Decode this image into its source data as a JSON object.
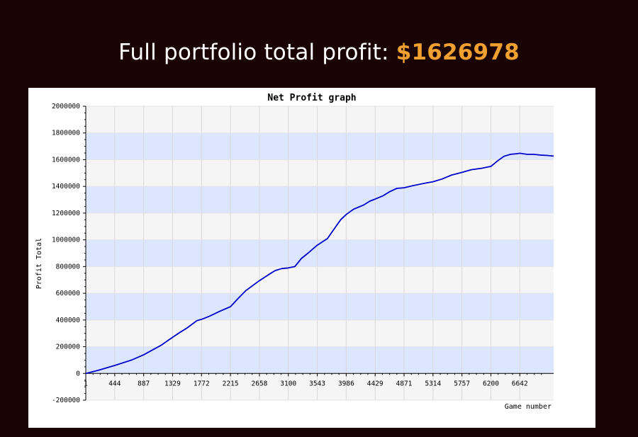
{
  "header": {
    "title_prefix": "Full portfolio total profit:",
    "total_profit": "$1626978"
  },
  "colors": {
    "page_background": "#1a0303",
    "highlight": "#f0a030",
    "line": "#0000cc",
    "band_light": "#f5f5f5",
    "band_blue": "#dde6ff"
  },
  "chart_data": {
    "type": "line",
    "title": "Net Profit graph",
    "xlabel": "Game number",
    "ylabel": "Profit Total",
    "xlim": [
      1,
      7160
    ],
    "ylim": [
      -200000,
      2000000
    ],
    "x_ticks": [
      1,
      444,
      887,
      1329,
      1772,
      2215,
      2658,
      3100,
      3543,
      3986,
      4429,
      4871,
      5314,
      5757,
      6200,
      6642
    ],
    "y_ticks": [
      -200000,
      0,
      200000,
      400000,
      600000,
      800000,
      1000000,
      1200000,
      1400000,
      1600000,
      1800000,
      2000000
    ],
    "grid": true,
    "series": [
      {
        "x": [
          1,
          200,
          444,
          700,
          887,
          1000,
          1150,
          1329,
          1450,
          1550,
          1700,
          1772,
          1900,
          2050,
          2215,
          2330,
          2450,
          2658,
          2800,
          2900,
          3000,
          3100,
          3200,
          3300,
          3400,
          3543,
          3700,
          3800,
          3900,
          3986,
          4100,
          4250,
          4350,
          4429,
          4550,
          4650,
          4760,
          4871,
          5000,
          5100,
          5200,
          5314,
          5450,
          5600,
          5757,
          5900,
          6050,
          6200,
          6300,
          6400,
          6500,
          6600,
          6642,
          6750,
          6850,
          6950,
          7050,
          7160
        ],
        "y": [
          0,
          25000,
          60000,
          100000,
          140000,
          170000,
          210000,
          270000,
          310000,
          340000,
          395000,
          405000,
          430000,
          465000,
          500000,
          560000,
          620000,
          695000,
          740000,
          770000,
          785000,
          790000,
          800000,
          860000,
          900000,
          960000,
          1010000,
          1080000,
          1150000,
          1190000,
          1230000,
          1260000,
          1290000,
          1305000,
          1330000,
          1360000,
          1385000,
          1390000,
          1405000,
          1415000,
          1425000,
          1435000,
          1455000,
          1485000,
          1505000,
          1525000,
          1535000,
          1550000,
          1590000,
          1625000,
          1640000,
          1645000,
          1648000,
          1640000,
          1640000,
          1635000,
          1632000,
          1626978
        ]
      }
    ]
  }
}
